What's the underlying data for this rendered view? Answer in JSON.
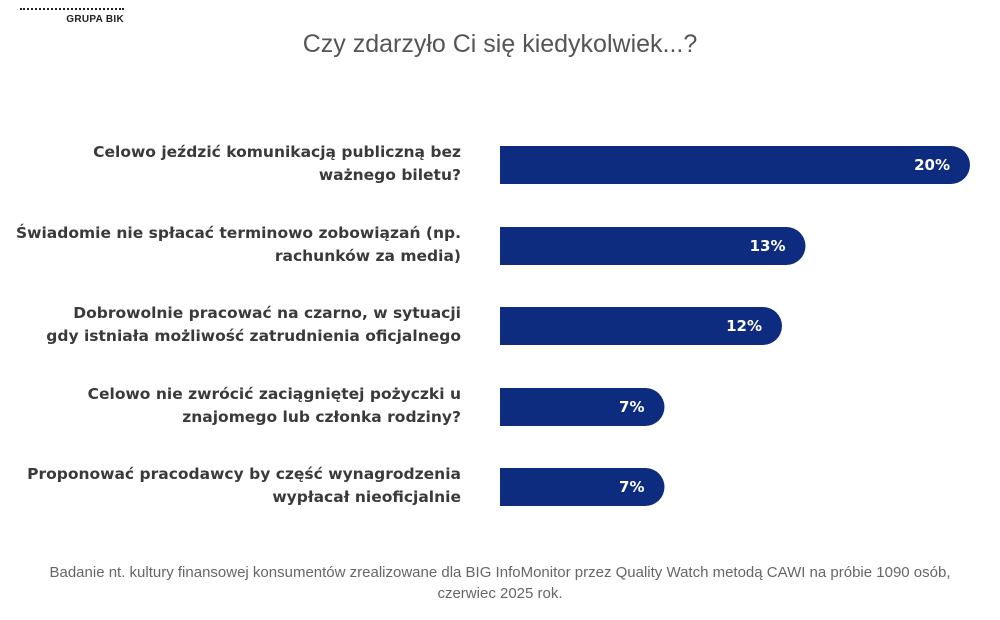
{
  "logo": {
    "text": "GRUPA BIK"
  },
  "title": "Czy zdarzyło Ci się kiedykolwiek...?",
  "note": "Badanie nt. kultury finansowej konsumentów zrealizowane dla BIG InfoMonitor przez Quality Watch metodą CAWI na próbie 1090 osób, czerwiec 2025 rok.",
  "colors": {
    "bar": "#0d2c80",
    "value_text": "#ffffff",
    "label_text": "#3a3a3a"
  },
  "chart_data": {
    "type": "bar",
    "orientation": "horizontal",
    "title": "Czy zdarzyło Ci się kiedykolwiek...?",
    "categories": [
      [
        "Celowo jeździć komunikacją publiczną bez",
        "ważnego biletu?"
      ],
      [
        "Świadomie nie spłacać terminowo zobowiązań (np.",
        "rachunków za media)"
      ],
      [
        "Dobrowolnie pracować na czarno, w sytuacji",
        "gdy istniała możliwość zatrudnienia oficjalnego"
      ],
      [
        "Celowo nie zwrócić zaciągniętej pożyczki u",
        "znajomego lub członka rodziny?"
      ],
      [
        "Proponować pracodawcy by część wynagrodzenia",
        "wypłacał nieoficjalnie"
      ]
    ],
    "values": [
      20,
      13,
      12,
      7,
      7
    ],
    "value_labels": [
      "20%",
      "13%",
      "12%",
      "7%",
      "7%"
    ],
    "unit": "%",
    "grid": false,
    "legend": "none"
  }
}
